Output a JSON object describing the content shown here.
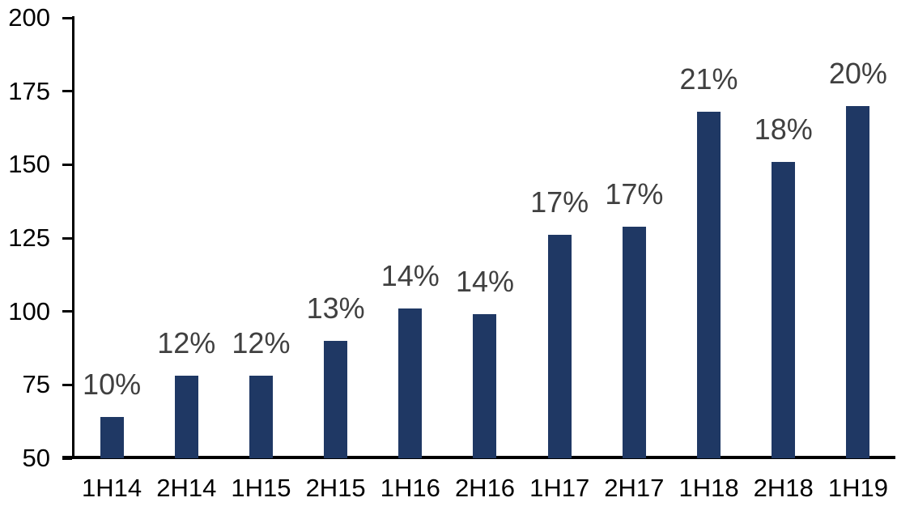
{
  "chart_data": {
    "type": "bar",
    "title": "",
    "xlabel": "",
    "ylabel": "",
    "categories": [
      "1H14",
      "2H14",
      "1H15",
      "2H15",
      "1H16",
      "2H16",
      "1H17",
      "2H17",
      "1H18",
      "2H18",
      "1H19"
    ],
    "values": [
      64,
      78,
      78,
      90,
      101,
      99,
      126,
      129,
      168,
      151,
      170
    ],
    "bar_labels": [
      "10%",
      "12%",
      "12%",
      "13%",
      "14%",
      "14%",
      "17%",
      "17%",
      "21%",
      "18%",
      "20%"
    ],
    "ylim": [
      50,
      200
    ],
    "yticks": [
      50,
      75,
      100,
      125,
      150,
      175,
      200
    ],
    "grid": false,
    "legend": false,
    "colors": {
      "bar_fill": "#1F3864",
      "bar_label_text": "#404040",
      "axis_line": "#000000",
      "axis_tick_text": "#000000",
      "background": "#FFFFFF"
    }
  }
}
